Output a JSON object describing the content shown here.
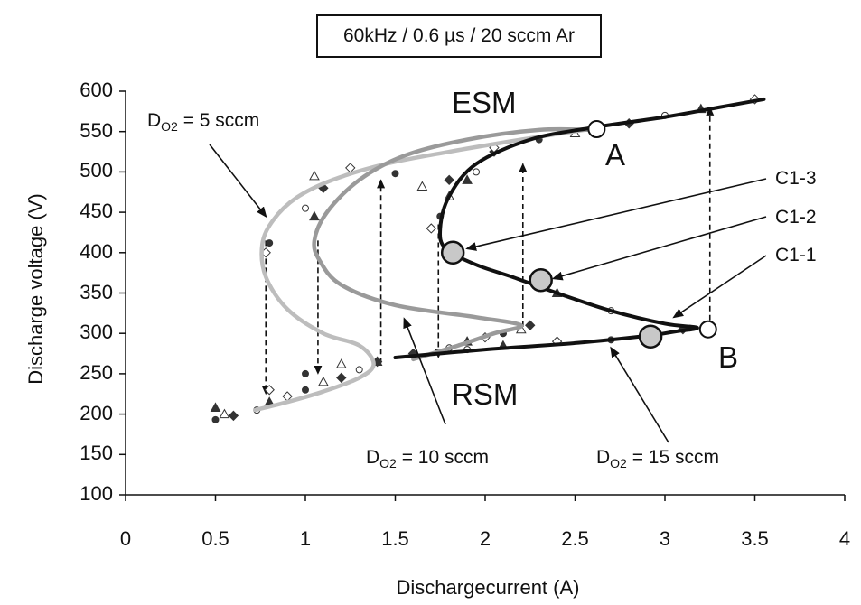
{
  "chart_data": {
    "type": "line",
    "title": "60kHz / 0.6 µs / 20 sccm Ar",
    "xlabel": "Dischargecurrent (A)",
    "ylabel": "Discharge voltage (V)",
    "xlim": [
      0,
      4
    ],
    "ylim": [
      100,
      600
    ],
    "x_ticks": [
      "0",
      "0.5",
      "1",
      "1.5",
      "2",
      "2.5",
      "3",
      "3.5",
      "4"
    ],
    "y_ticks": [
      "100",
      "150",
      "200",
      "250",
      "300",
      "350",
      "400",
      "450",
      "500",
      "550",
      "600"
    ],
    "grid": false,
    "series": [
      {
        "name": "DO2 = 5 sccm",
        "color": "#bdbdbd",
        "curve": [
          [
            0.72,
            205
          ],
          [
            0.9,
            215
          ],
          [
            1.1,
            228
          ],
          [
            1.3,
            245
          ],
          [
            1.38,
            262
          ],
          [
            1.3,
            285
          ],
          [
            1.1,
            300
          ],
          [
            0.9,
            330
          ],
          [
            0.78,
            370
          ],
          [
            0.76,
            410
          ],
          [
            0.82,
            440
          ],
          [
            0.95,
            468
          ],
          [
            1.15,
            490
          ],
          [
            1.45,
            510
          ],
          [
            1.8,
            525
          ],
          [
            2.2,
            540
          ],
          [
            2.55,
            552
          ]
        ],
        "points": [
          [
            0.5,
            193
          ],
          [
            0.55,
            200
          ],
          [
            0.6,
            198
          ],
          [
            0.73,
            205
          ],
          [
            0.8,
            215
          ],
          [
            0.9,
            222
          ],
          [
            1.0,
            230
          ],
          [
            1.1,
            240
          ],
          [
            1.2,
            245
          ],
          [
            1.3,
            255
          ],
          [
            1.4,
            265
          ],
          [
            0.78,
            400
          ],
          [
            0.8,
            412
          ],
          [
            1.05,
            495
          ],
          [
            1.1,
            480
          ]
        ]
      },
      {
        "name": "DO2 = 10 sccm",
        "color": "#9a9a9a",
        "curve": [
          [
            1.6,
            268
          ],
          [
            1.85,
            285
          ],
          [
            2.05,
            300
          ],
          [
            2.2,
            310
          ],
          [
            1.95,
            320
          ],
          [
            1.5,
            335
          ],
          [
            1.2,
            360
          ],
          [
            1.08,
            390
          ],
          [
            1.05,
            415
          ],
          [
            1.12,
            450
          ],
          [
            1.3,
            490
          ],
          [
            1.55,
            520
          ],
          [
            1.9,
            540
          ],
          [
            2.3,
            552
          ],
          [
            2.6,
            552
          ]
        ],
        "points": [
          [
            0.5,
            208
          ],
          [
            0.8,
            230
          ],
          [
            1.0,
            250
          ],
          [
            1.2,
            262
          ],
          [
            1.4,
            265
          ],
          [
            1.8,
            282
          ],
          [
            1.9,
            290
          ],
          [
            2.0,
            295
          ],
          [
            2.1,
            300
          ],
          [
            2.2,
            305
          ],
          [
            2.25,
            310
          ],
          [
            1.0,
            455
          ],
          [
            1.05,
            445
          ],
          [
            1.25,
            505
          ],
          [
            1.5,
            498
          ],
          [
            1.65,
            482
          ],
          [
            2.05,
            525
          ]
        ]
      },
      {
        "name": "DO2 = 15 sccm",
        "color": "#111111",
        "curve": [
          [
            1.5,
            270
          ],
          [
            2.0,
            280
          ],
          [
            2.5,
            288
          ],
          [
            2.9,
            297
          ],
          [
            3.05,
            302
          ],
          [
            3.18,
            307
          ],
          [
            3.0,
            312
          ],
          [
            2.7,
            328
          ],
          [
            2.4,
            350
          ],
          [
            2.15,
            370
          ],
          [
            1.95,
            385
          ],
          [
            1.78,
            405
          ],
          [
            1.75,
            430
          ],
          [
            1.8,
            470
          ],
          [
            1.95,
            510
          ],
          [
            2.25,
            540
          ],
          [
            2.6,
            555
          ],
          [
            3.0,
            568
          ],
          [
            3.3,
            580
          ],
          [
            3.55,
            590
          ]
        ],
        "points": [
          [
            1.6,
            275
          ],
          [
            1.9,
            280
          ],
          [
            2.1,
            285
          ],
          [
            2.4,
            290
          ],
          [
            2.7,
            292
          ],
          [
            2.9,
            297
          ],
          [
            3.1,
            305
          ],
          [
            2.7,
            328
          ],
          [
            2.4,
            350
          ],
          [
            1.7,
            430
          ],
          [
            1.75,
            445
          ],
          [
            1.8,
            470
          ],
          [
            1.8,
            490
          ],
          [
            1.95,
            500
          ],
          [
            1.9,
            490
          ],
          [
            2.05,
            530
          ],
          [
            2.3,
            540
          ],
          [
            2.5,
            548
          ],
          [
            2.8,
            560
          ],
          [
            3.0,
            570
          ],
          [
            3.2,
            578
          ],
          [
            3.5,
            590
          ],
          [
            2.1,
            300
          ]
        ]
      }
    ],
    "transitions": [
      {
        "x": 0.78,
        "from": 415,
        "to": 225
      },
      {
        "x": 1.07,
        "from": 415,
        "to": 250
      },
      {
        "x": 1.42,
        "from": 263,
        "to": 490
      },
      {
        "x": 1.74,
        "from": 435,
        "to": 270
      },
      {
        "x": 2.21,
        "from": 308,
        "to": 510
      },
      {
        "x": 3.25,
        "from": 305,
        "to": 580
      }
    ],
    "marker_points": [
      {
        "label": "A",
        "x": 2.62,
        "y": 553,
        "style": "open"
      },
      {
        "label": "B",
        "x": 3.24,
        "y": 305,
        "style": "open"
      },
      {
        "label": "C1-3",
        "x": 1.82,
        "y": 400,
        "style": "grey"
      },
      {
        "label": "C1-2",
        "x": 2.31,
        "y": 366,
        "style": "grey"
      },
      {
        "label": "C1-1",
        "x": 2.92,
        "y": 296,
        "style": "grey"
      }
    ],
    "annotations": {
      "esm": "ESM",
      "rsm": "RSM",
      "point_a": "A",
      "point_b": "B",
      "c13": "C1-3",
      "c12": "C1-2",
      "c11": "C1-1",
      "d5_prefix": "D",
      "d5_sub": "O2",
      "d5_value": " = 5 sccm",
      "d10_prefix": "D",
      "d10_sub": "O2",
      "d10_value": " = 10 sccm",
      "d15_prefix": "D",
      "d15_sub": "O2",
      "d15_value": " = 15 sccm"
    }
  }
}
